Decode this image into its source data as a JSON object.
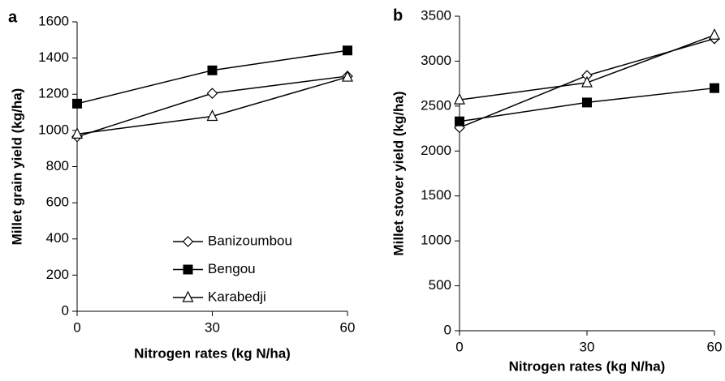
{
  "chart_data": [
    {
      "type": "line",
      "panel": "a",
      "x_label": "Nitrogen rates (kg N/ha)",
      "y_label": "Millet grain yield (kg/ha)",
      "x": [
        0,
        30,
        60
      ],
      "xlim": [
        0,
        60
      ],
      "xticks": [
        0,
        30,
        60
      ],
      "ylim": [
        0,
        1600
      ],
      "yticks": [
        0,
        200,
        400,
        600,
        800,
        1000,
        1200,
        1400,
        1600
      ],
      "legend": "center",
      "grid": false,
      "series": [
        {
          "name": "Banizoumbou",
          "color": "#000000",
          "marker": "diamond",
          "values": [
            965,
            1205,
            1300
          ]
        },
        {
          "name": "Bengou",
          "color": "#000000",
          "marker": "square",
          "values": [
            1148,
            1332,
            1442
          ]
        },
        {
          "name": "Karabedji",
          "color": "#000000",
          "marker": "triangle",
          "values": [
            980,
            1078,
            1295
          ]
        }
      ]
    },
    {
      "type": "line",
      "panel": "b",
      "x_label": "Nitrogen rates (kg N/ha)",
      "y_label": "Millet stover yield (kg/ha)",
      "x": [
        0,
        30,
        60
      ],
      "xlim": [
        0,
        60
      ],
      "xticks": [
        0,
        30,
        60
      ],
      "ylim": [
        0,
        3500
      ],
      "yticks": [
        0,
        500,
        1000,
        1500,
        2000,
        2500,
        3000,
        3500
      ],
      "grid": false,
      "series": [
        {
          "color": "#000000",
          "marker": "diamond",
          "values": [
            2260,
            2840,
            3250
          ]
        },
        {
          "color": "#000000",
          "marker": "square",
          "values": [
            2330,
            2540,
            2700
          ]
        },
        {
          "color": "#000000",
          "marker": "triangle",
          "values": [
            2570,
            2760,
            3290
          ]
        }
      ]
    }
  ]
}
